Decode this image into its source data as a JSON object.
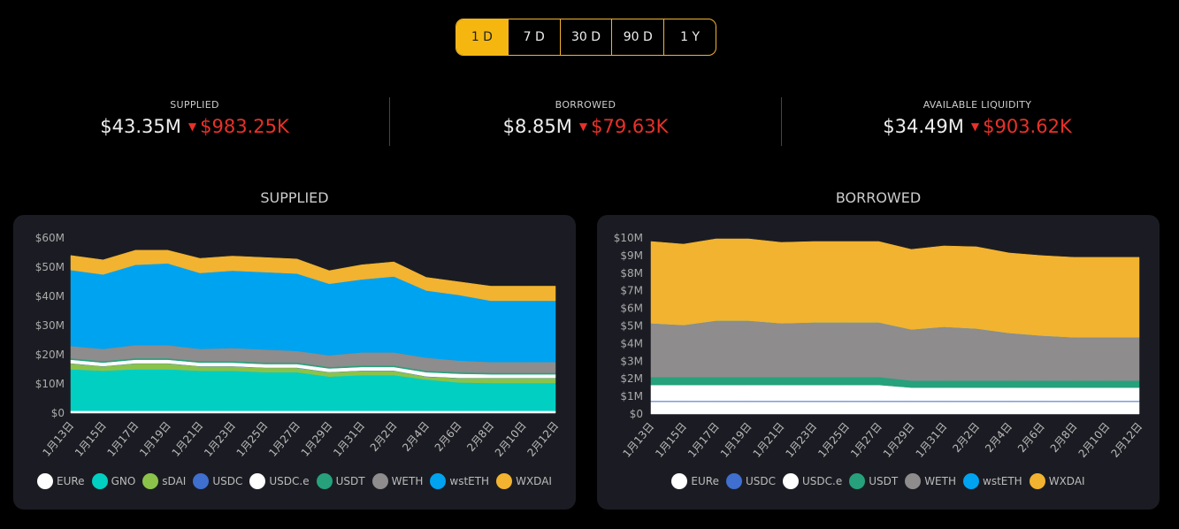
{
  "range_selector": {
    "options": [
      "1 D",
      "7 D",
      "30 D",
      "90 D",
      "1 Y"
    ],
    "active": "1 D",
    "accent": "#f5b70f"
  },
  "stats": [
    {
      "label": "SUPPLIED",
      "value": "$43.35M",
      "change": "$983.25K",
      "direction": "down"
    },
    {
      "label": "BORROWED",
      "value": "$8.85M",
      "change": "$79.63K",
      "direction": "down"
    },
    {
      "label": "AVAILABLE LIQUIDITY",
      "value": "$34.49M",
      "change": "$903.62K",
      "direction": "down"
    }
  ],
  "chart_data": [
    {
      "type": "area",
      "stacked": true,
      "title": "SUPPLIED",
      "ylim": [
        0,
        60
      ],
      "y_unit": "M",
      "y_ticks": [
        "$0",
        "$10M",
        "$20M",
        "$30M",
        "$40M",
        "$50M",
        "$60M"
      ],
      "x": [
        "1月13日",
        "1月15日",
        "1月17日",
        "1月19日",
        "1月21日",
        "1月23日",
        "1月25日",
        "1月27日",
        "1月29日",
        "1月31日",
        "2月2日",
        "2月4日",
        "2月6日",
        "2月8日",
        "2月10日",
        "2月12日"
      ],
      "legend": "bottom",
      "series": [
        {
          "name": "EURe",
          "color": "#ffffff",
          "values": [
            0.8,
            0.8,
            0.8,
            0.8,
            0.8,
            0.8,
            0.8,
            0.8,
            0.8,
            0.8,
            0.8,
            0.8,
            0.8,
            0.8,
            0.8,
            0.8
          ]
        },
        {
          "name": "GNO",
          "color": "#00cfc1",
          "values": [
            14.2,
            13.7,
            14.2,
            14.2,
            13.7,
            13.7,
            13.2,
            13.2,
            11.7,
            12.2,
            12.2,
            10.7,
            9.7,
            9.5,
            9.5,
            9.5
          ]
        },
        {
          "name": "sDAI",
          "color": "#8bc34a",
          "values": [
            2,
            1.5,
            2,
            2,
            1.5,
            1.5,
            1.5,
            1.5,
            1.5,
            1.5,
            1.5,
            1,
            1.5,
            1.7,
            1.7,
            1.7
          ]
        },
        {
          "name": "USDC",
          "color": "#3f6fcf",
          "values": [
            0.1,
            0.1,
            0.1,
            0.1,
            0.1,
            0.1,
            0.1,
            0.1,
            0.1,
            0.1,
            0.1,
            0.1,
            0.1,
            0.1,
            0.1,
            0.1
          ]
        },
        {
          "name": "USDC.e",
          "color": "#ffffff",
          "values": [
            1.2,
            1.2,
            1.2,
            1.2,
            1.2,
            1.2,
            1.2,
            1.2,
            1.2,
            1.2,
            1.2,
            1.4,
            1.4,
            1.2,
            1.2,
            1.2
          ]
        },
        {
          "name": "USDT",
          "color": "#26a17b",
          "values": [
            0.5,
            0.5,
            0.5,
            0.5,
            0.5,
            0.5,
            0.5,
            0.5,
            0.5,
            0.5,
            0.5,
            0.5,
            0.5,
            0.5,
            0.5,
            0.5
          ]
        },
        {
          "name": "WETH",
          "color": "#8e8c8c",
          "values": [
            4.2,
            4.2,
            4.5,
            4.5,
            4.2,
            4.5,
            4.5,
            4,
            4,
            4.5,
            4.5,
            4.5,
            4,
            3.7,
            3.7,
            3.7
          ]
        },
        {
          "name": "wstETH",
          "color": "#00a3f0",
          "values": [
            26,
            25.5,
            27.5,
            28,
            26,
            26.5,
            26.5,
            26.5,
            24.5,
            25,
            26,
            23,
            22.5,
            21,
            21,
            21
          ]
        },
        {
          "name": "WXDAI",
          "color": "#f2b330",
          "values": [
            5,
            5,
            5,
            4.5,
            5,
            5,
            5,
            5,
            4.5,
            5,
            5,
            4.5,
            4.5,
            5,
            5,
            5
          ]
        }
      ]
    },
    {
      "type": "area",
      "stacked": true,
      "title": "BORROWED",
      "ylim": [
        0,
        10
      ],
      "y_unit": "M",
      "y_ticks": [
        "$0",
        "$1M",
        "$2M",
        "$3M",
        "$4M",
        "$5M",
        "$6M",
        "$7M",
        "$8M",
        "$9M",
        "$10M"
      ],
      "x": [
        "1月13日",
        "1月15日",
        "1月17日",
        "1月19日",
        "1月21日",
        "1月23日",
        "1月25日",
        "1月27日",
        "1月29日",
        "1月31日",
        "2月2日",
        "2月4日",
        "2月6日",
        "2月8日",
        "2月10日",
        "2月12日"
      ],
      "legend": "bottom",
      "series": [
        {
          "name": "EURe",
          "color": "#ffffff",
          "values": [
            0.7,
            0.7,
            0.7,
            0.7,
            0.7,
            0.7,
            0.7,
            0.7,
            0.7,
            0.7,
            0.7,
            0.7,
            0.7,
            0.7,
            0.7,
            0.7
          ]
        },
        {
          "name": "USDC",
          "color": "#3f6fcf",
          "values": [
            0.05,
            0.05,
            0.05,
            0.05,
            0.05,
            0.05,
            0.05,
            0.05,
            0.05,
            0.05,
            0.05,
            0.05,
            0.05,
            0.05,
            0.05,
            0.05
          ]
        },
        {
          "name": "USDC.e",
          "color": "#ffffff",
          "values": [
            0.9,
            0.9,
            0.9,
            0.9,
            0.9,
            0.9,
            0.9,
            0.9,
            0.75,
            0.75,
            0.75,
            0.75,
            0.75,
            0.75,
            0.75,
            0.75
          ]
        },
        {
          "name": "USDT",
          "color": "#26a17b",
          "values": [
            0.45,
            0.45,
            0.45,
            0.45,
            0.45,
            0.45,
            0.45,
            0.45,
            0.4,
            0.4,
            0.4,
            0.4,
            0.4,
            0.4,
            0.4,
            0.4
          ]
        },
        {
          "name": "WETH",
          "color": "#8e8c8c",
          "values": [
            3.05,
            2.95,
            3.2,
            3.2,
            3.05,
            3.1,
            3.1,
            3.1,
            2.9,
            3.05,
            2.95,
            2.7,
            2.55,
            2.45,
            2.45,
            2.45
          ]
        },
        {
          "name": "wstETH",
          "color": "#00a3f0",
          "values": [
            0,
            0,
            0,
            0,
            0,
            0,
            0,
            0,
            0,
            0,
            0,
            0,
            0,
            0,
            0,
            0
          ]
        },
        {
          "name": "WXDAI",
          "color": "#f2b330",
          "values": [
            4.65,
            4.6,
            4.65,
            4.65,
            4.6,
            4.6,
            4.6,
            4.6,
            4.55,
            4.6,
            4.65,
            4.55,
            4.55,
            4.55,
            4.55,
            4.55
          ]
        }
      ]
    }
  ]
}
